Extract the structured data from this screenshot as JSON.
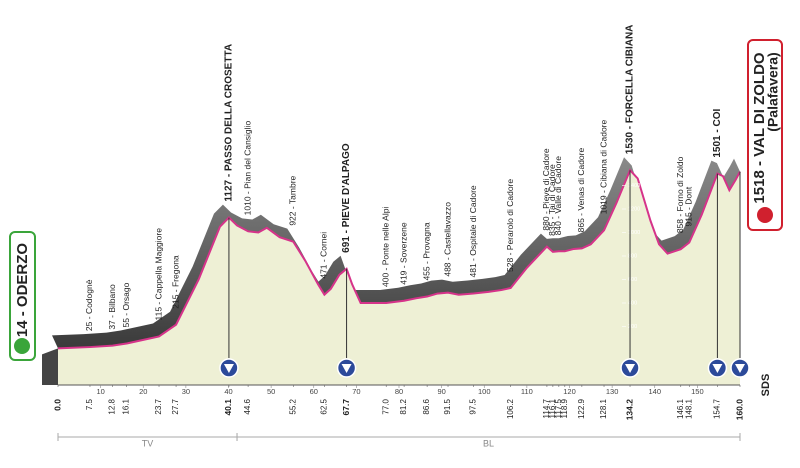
{
  "chart_data": {
    "type": "area",
    "start": {
      "label": "14 - ODERZO"
    },
    "finish": {
      "label": "1518 - VAL DI ZOLDO",
      "sublabel": "(Palafavera)"
    },
    "logo": "SDS",
    "color": "#d6338a",
    "fill": "#eef0d5",
    "band_color": "#4d4d4d",
    "x": [
      0,
      7.5,
      12.8,
      16.1,
      23.7,
      27.7,
      33,
      38,
      40.1,
      42,
      44.6,
      47,
      49,
      52,
      55.2,
      58,
      61,
      62.5,
      64,
      66,
      67.7,
      69,
      71,
      77,
      81.2,
      84,
      86.6,
      89,
      91.5,
      94,
      97.5,
      101,
      104,
      106.2,
      110,
      114.7,
      116.1,
      117.5,
      118.9,
      121,
      122.9,
      125,
      128.1,
      131,
      134.2,
      136,
      139,
      141,
      143,
      146.1,
      148.1,
      151,
      154.7,
      156,
      157.5,
      159,
      160
    ],
    "values": [
      14,
      25,
      37,
      55,
      115,
      215,
      600,
      1050,
      1127,
      1060,
      1010,
      1000,
      1040,
      960,
      922,
      760,
      560,
      471,
      520,
      640,
      691,
      560,
      400,
      400,
      419,
      440,
      455,
      480,
      488,
      470,
      481,
      495,
      510,
      528,
      700,
      880,
      835,
      840,
      840,
      860,
      865,
      900,
      1019,
      1250,
      1530,
      1460,
      1100,
      900,
      820,
      858,
      915,
      1150,
      1501,
      1480,
      1360,
      1450,
      1518
    ],
    "xlim": [
      0,
      160
    ],
    "ylim": [
      0,
      1600
    ],
    "xticks": [
      10,
      20,
      30,
      40,
      50,
      60,
      70,
      80,
      90,
      100,
      110,
      120,
      130,
      140,
      150
    ],
    "yticks": [
      200,
      400,
      600,
      800,
      1000,
      1200,
      1400
    ],
    "waypoints": [
      {
        "km": {
          "value": 0,
          "label": "0.0"
        },
        "bold": true
      },
      {
        "km": 7.5,
        "label": "25 - Codognè"
      },
      {
        "km": 12.8,
        "label": "37 - Bilbano"
      },
      {
        "km": 16.1,
        "label": "55 - Orsago"
      },
      {
        "km": 23.7,
        "label": "115 - Cappella Maggiore"
      },
      {
        "km": 27.7,
        "label": "215 - Fregona"
      },
      {
        "km": 40.1,
        "label": "1127 - PASSO DELLA CROSETTA",
        "summit": true,
        "kom": true,
        "bold": true
      },
      {
        "km": 44.6,
        "label": "1010 - Pian del Cansiglio"
      },
      {
        "km": 55.2,
        "label": "922 - Tambre"
      },
      {
        "km": 62.5,
        "label": "471 - Cornei"
      },
      {
        "km": 67.7,
        "label": "691 - PIEVE D'ALPAGO",
        "summit": true,
        "kom": true,
        "bold": true
      },
      {
        "km": {
          "value": 77,
          "label": "77.0"
        },
        "label": "400 - Ponte nelle Alpi"
      },
      {
        "km": 81.2,
        "label": "419 - Soverzene"
      },
      {
        "km": 86.6,
        "label": "455 - Provagna"
      },
      {
        "km": 91.5,
        "label": "488 - Castellavazzo"
      },
      {
        "km": 97.5,
        "label": "481 - Ospitale di Cadore"
      },
      {
        "km": 106.2,
        "label": "528 - Perarolo di Cadore"
      },
      {
        "km": 114.7,
        "label": "880 - Pieve di Cadore"
      },
      {
        "km": 116.1,
        "label": "835 - Tai di Cadore"
      },
      {
        "km": 117.5,
        "label": "840 - Valle di Cadore"
      },
      {
        "km": 118.9
      },
      {
        "km": 122.9,
        "label": "865 - Venas di Cadore"
      },
      {
        "km": 128.1,
        "label": "1019 - Cibiana di Cadore"
      },
      {
        "km": 134.2,
        "label": "1530 - FORCELLA CIBIANA",
        "summit": true,
        "kom": true,
        "bold": true
      },
      {
        "km": 146.1,
        "label": "858 - Forno di Zoldo"
      },
      {
        "km": 148.1,
        "label": "915 - Dont"
      },
      {
        "km": 154.7,
        "label": "1501 - COI",
        "summit": true,
        "kom": true
      },
      {
        "km": {
          "value": 160,
          "label": "160.0"
        },
        "kom": true,
        "bold": true
      }
    ],
    "provinces": [
      {
        "label": "TV",
        "range": [
          0,
          42
        ]
      },
      {
        "label": "BL",
        "range": [
          42,
          160
        ]
      }
    ]
  }
}
